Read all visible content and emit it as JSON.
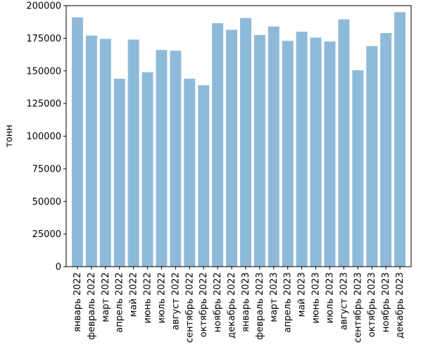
{
  "chart_data": {
    "type": "bar",
    "title": "",
    "xlabel": "",
    "ylabel": "тонн",
    "ylim": [
      0,
      200000
    ],
    "yticks": [
      0,
      25000,
      50000,
      75000,
      100000,
      125000,
      150000,
      175000,
      200000
    ],
    "ytick_labels": [
      "0",
      "25000",
      "50000",
      "75000",
      "100000",
      "125000",
      "150000",
      "175000",
      "200000"
    ],
    "categories": [
      "январь 2022",
      "февраль 2022",
      "март 2022",
      "апрель 2022",
      "май 2022",
      "июнь 2022",
      "июль 2022",
      "август 2022",
      "сентябрь 2022",
      "октябрь 2022",
      "ноябрь 2022",
      "декабрь 2022",
      "январь 2023",
      "февраль 2023",
      "март 2023",
      "апрель 2023",
      "май 2023",
      "июнь 2023",
      "июль 2023",
      "август 2023",
      "сентябрь 2023",
      "октябрь 2023",
      "ноябрь 2023",
      "декабрь 2023"
    ],
    "values": [
      191000,
      177000,
      174500,
      144000,
      174000,
      149000,
      166000,
      165500,
      144000,
      139000,
      186500,
      181500,
      190500,
      177500,
      184000,
      173000,
      180000,
      175500,
      172500,
      189500,
      150500,
      169000,
      179000,
      195000
    ],
    "bar_color": "#8ebad9",
    "grid": false,
    "legend": "none"
  }
}
